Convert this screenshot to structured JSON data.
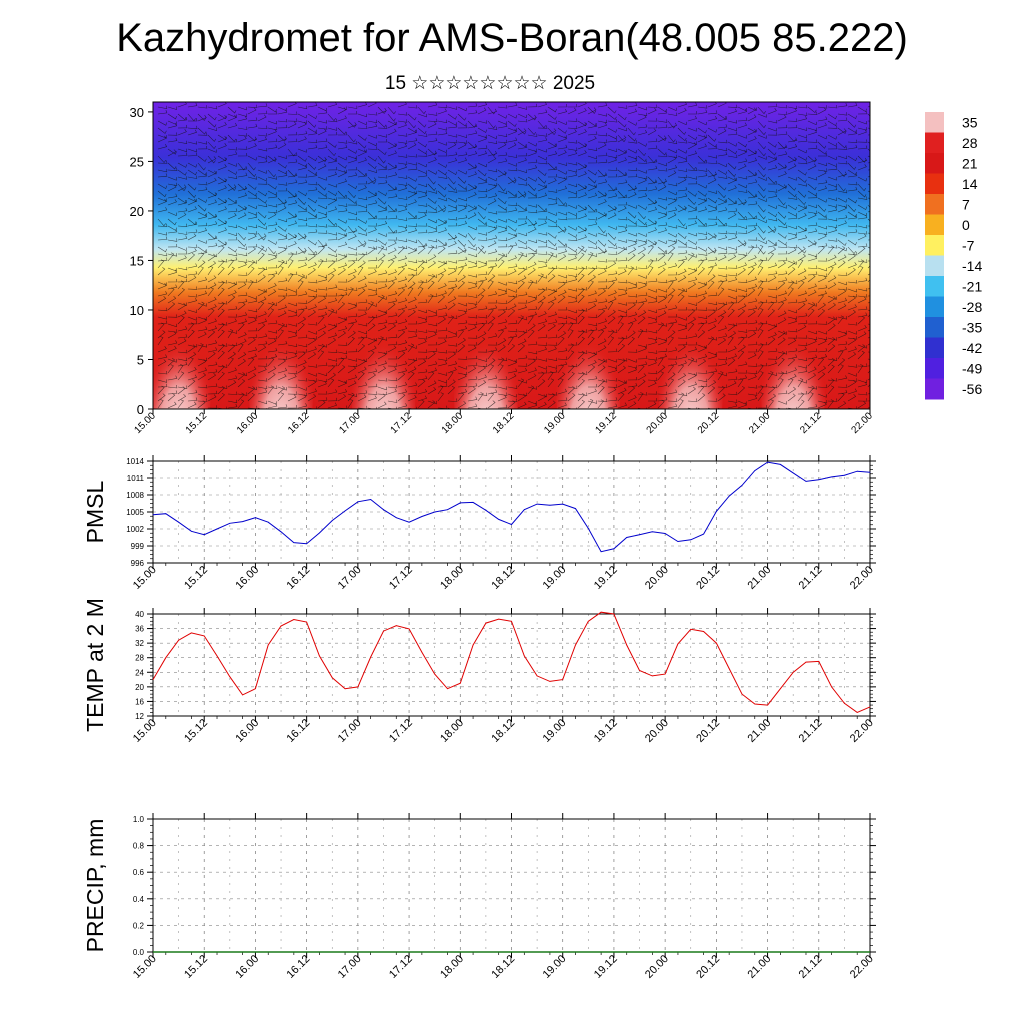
{
  "title": "Kazhydromet for AMS-Boran(48.005 85.222)",
  "subtitle": "15 ☆☆☆☆☆☆☆☆ 2025",
  "time_labels": [
    "15.00",
    "15.12",
    "16.00",
    "16.12",
    "17.00",
    "17.12",
    "18.00",
    "18.12",
    "19.00",
    "19.12",
    "20.00",
    "20.12",
    "21.00",
    "21.12",
    "22.00"
  ],
  "chart_data": [
    {
      "type": "heatmap",
      "name": "vertical temperature and wind section",
      "x_labels": [
        "15.00",
        "15.12",
        "16.00",
        "16.12",
        "17.00",
        "17.12",
        "18.00",
        "18.12",
        "19.00",
        "19.12",
        "20.00",
        "20.12",
        "21.00",
        "21.12",
        "22.00"
      ],
      "y_ticks": [
        0,
        5,
        10,
        15,
        20,
        25,
        30
      ],
      "ylim": [
        0,
        31
      ],
      "colorbar_labels": [
        "35",
        "28",
        "21",
        "14",
        "7",
        "0",
        "-7",
        "-14",
        "-21",
        "-28",
        "-35",
        "-42",
        "-49",
        "-56"
      ],
      "colorbar_colors": [
        "#f4c0c0",
        "#e02020",
        "#d81818",
        "#e83010",
        "#f07020",
        "#f8b020",
        "#fff060",
        "#b8e0f0",
        "#40c0f0",
        "#2090e0",
        "#2060d0",
        "#3030d0",
        "#5020e0",
        "#7020e0"
      ],
      "surface_warm_peaks_at": [
        "15.06",
        "16.06",
        "17.06",
        "18.06",
        "19.06",
        "20.06",
        "21.06"
      ]
    },
    {
      "type": "line",
      "ylabel": "PMSL",
      "y_ticks": [
        996,
        999,
        1002,
        1005,
        1008,
        1011,
        1014
      ],
      "ylim": [
        996,
        1014
      ],
      "line_color": "#0000cc",
      "x": [
        "15.00",
        "15.03",
        "15.06",
        "15.09",
        "15.12",
        "15.15",
        "15.18",
        "15.21",
        "16.00",
        "16.03",
        "16.06",
        "16.09",
        "16.12",
        "16.15",
        "16.18",
        "16.21",
        "17.00",
        "17.03",
        "17.06",
        "17.09",
        "17.12",
        "17.15",
        "17.18",
        "17.21",
        "18.00",
        "18.03",
        "18.06",
        "18.09",
        "18.12",
        "18.15",
        "18.18",
        "18.21",
        "19.00",
        "19.03",
        "19.06",
        "19.09",
        "19.12",
        "19.15",
        "19.18",
        "19.21",
        "20.00",
        "20.03",
        "20.06",
        "20.09",
        "20.12",
        "20.15",
        "20.18",
        "20.21",
        "21.00",
        "21.03",
        "21.06",
        "21.09",
        "21.12",
        "21.15",
        "21.18",
        "21.21",
        "22.00"
      ],
      "values": [
        1004.5,
        1004.7,
        1003.2,
        1001.6,
        1001.0,
        1002.0,
        1003.0,
        1003.3,
        1004.0,
        1003.2,
        1001.5,
        999.6,
        999.4,
        1001.3,
        1003.5,
        1005.2,
        1006.8,
        1007.2,
        1005.4,
        1004.0,
        1003.2,
        1004.2,
        1005.0,
        1005.4,
        1006.6,
        1006.7,
        1005.3,
        1003.7,
        1002.8,
        1005.4,
        1006.4,
        1006.2,
        1006.4,
        1005.6,
        1002.1,
        998.0,
        998.5,
        1000.5,
        1001.0,
        1001.5,
        1001.2,
        999.8,
        1000.1,
        1001.1,
        1005.1,
        1007.8,
        1009.7,
        1012.3,
        1013.8,
        1013.4,
        1011.9,
        1010.4,
        1010.7,
        1011.2,
        1011.5,
        1012.2,
        1012.0
      ]
    },
    {
      "type": "line",
      "ylabel": "TEMP at 2 M",
      "y_ticks": [
        12,
        16,
        20,
        24,
        28,
        32,
        36,
        40
      ],
      "ylim": [
        12,
        40
      ],
      "line_color": "#e00000",
      "x": [
        "15.00",
        "15.03",
        "15.06",
        "15.09",
        "15.12",
        "15.15",
        "15.18",
        "15.21",
        "16.00",
        "16.03",
        "16.06",
        "16.09",
        "16.12",
        "16.15",
        "16.18",
        "16.21",
        "17.00",
        "17.03",
        "17.06",
        "17.09",
        "17.12",
        "17.15",
        "17.18",
        "17.21",
        "18.00",
        "18.03",
        "18.06",
        "18.09",
        "18.12",
        "18.15",
        "18.18",
        "18.21",
        "19.00",
        "19.03",
        "19.06",
        "19.09",
        "19.12",
        "19.15",
        "19.18",
        "19.21",
        "20.00",
        "20.03",
        "20.06",
        "20.09",
        "20.12",
        "20.15",
        "20.18",
        "20.21",
        "21.00",
        "21.03",
        "21.06",
        "21.09",
        "21.12",
        "21.15",
        "21.18",
        "21.21",
        "22.00"
      ],
      "values": [
        22.0,
        28.0,
        32.8,
        34.8,
        34.0,
        28.5,
        22.8,
        17.8,
        19.5,
        31.5,
        36.7,
        38.5,
        37.8,
        28.5,
        22.5,
        19.5,
        20.0,
        28.2,
        35.3,
        36.8,
        35.9,
        29.5,
        23.5,
        19.5,
        21.0,
        31.5,
        37.5,
        38.6,
        38.0,
        28.5,
        23.0,
        21.5,
        22.0,
        31.5,
        38.0,
        40.5,
        40.0,
        31.5,
        24.5,
        23.0,
        23.5,
        31.8,
        35.8,
        35.2,
        32.0,
        25.0,
        18.0,
        15.3,
        15.0,
        19.5,
        24.0,
        26.8,
        27.0,
        20.0,
        15.5,
        13.0,
        14.5
      ]
    },
    {
      "type": "bar",
      "ylabel": "PRECIP, mm",
      "y_ticks": [
        "0.0",
        "0.2",
        "0.4",
        "0.6",
        "0.8",
        "1.0"
      ],
      "ylim": [
        0,
        1.0
      ],
      "bar_color": "#1a7a1a",
      "categories": [
        "15.00",
        "15.03",
        "15.06",
        "15.09",
        "15.12",
        "15.15",
        "15.18",
        "15.21",
        "16.00",
        "16.03",
        "16.06",
        "16.09",
        "16.12",
        "16.15",
        "16.18",
        "16.21",
        "17.00",
        "17.03",
        "17.06",
        "17.09",
        "17.12",
        "17.15",
        "17.18",
        "17.21",
        "18.00",
        "18.03",
        "18.06",
        "18.09",
        "18.12",
        "18.15",
        "18.18",
        "18.21",
        "19.00",
        "19.03",
        "19.06",
        "19.09",
        "19.12",
        "19.15",
        "19.18",
        "19.21",
        "20.00",
        "20.03",
        "20.06",
        "20.09",
        "20.12",
        "20.15",
        "20.18",
        "20.21",
        "21.00",
        "21.03",
        "21.06",
        "21.09",
        "21.12",
        "21.15",
        "21.18",
        "21.21",
        "22.00"
      ],
      "values": [
        0,
        0,
        0,
        0,
        0,
        0,
        0,
        0,
        0,
        0,
        0,
        0,
        0,
        0,
        0,
        0,
        0,
        0,
        0,
        0,
        0,
        0,
        0,
        0,
        0,
        0,
        0,
        0,
        0,
        0,
        0,
        0,
        0,
        0,
        0,
        0,
        0,
        0,
        0,
        0,
        0,
        0,
        0,
        0,
        0,
        0,
        0,
        0,
        0,
        0,
        0,
        0,
        0,
        0,
        0,
        0,
        0
      ]
    }
  ]
}
